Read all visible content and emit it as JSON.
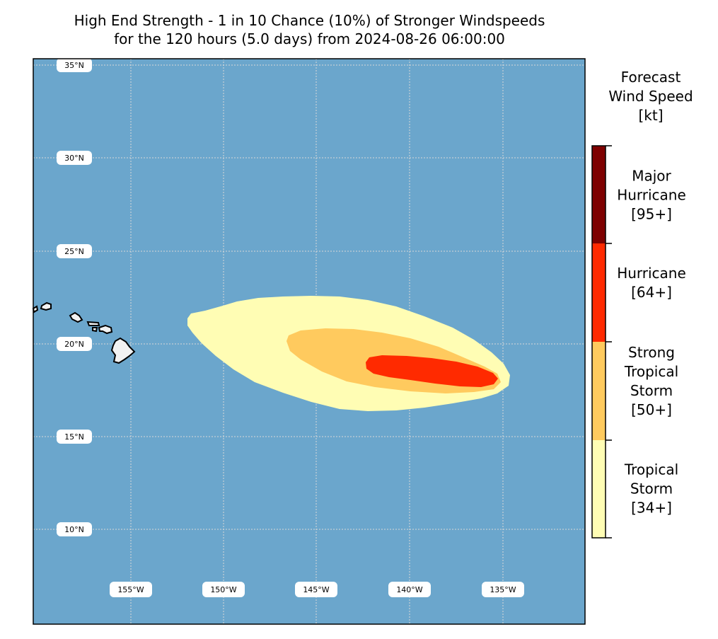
{
  "title": {
    "line1": "High End Strength - 1 in 10 Chance (10%) of Stronger Windspeeds",
    "line2": "for the 120 hours (5.0 days) from 2024-08-26 06:00:00"
  },
  "colorbar": {
    "title_lines": [
      "Forecast",
      "Wind Speed",
      "[kt]"
    ],
    "categories": [
      {
        "lines": [
          "Tropical",
          "Storm",
          "[34+]"
        ],
        "color": "#fffdb4"
      },
      {
        "lines": [
          "Strong",
          "Tropical",
          "Storm",
          "[50+]"
        ],
        "color": "#ffca5e"
      },
      {
        "lines": [
          "Hurricane",
          "[64+]"
        ],
        "color": "#ff2a00"
      },
      {
        "lines": [
          "Major",
          "Hurricane",
          "[95+]"
        ],
        "color": "#7e0000"
      }
    ]
  },
  "map": {
    "ocean_color": "#6ba6cc",
    "land_color": "#f2f2f2",
    "grid_color": "#d8d8d8",
    "lat_labels": [
      "35°N",
      "30°N",
      "25°N",
      "20°N",
      "15°N",
      "10°N"
    ],
    "lon_labels": [
      "155°W",
      "150°W",
      "145°W",
      "140°W",
      "135°W"
    ]
  }
}
